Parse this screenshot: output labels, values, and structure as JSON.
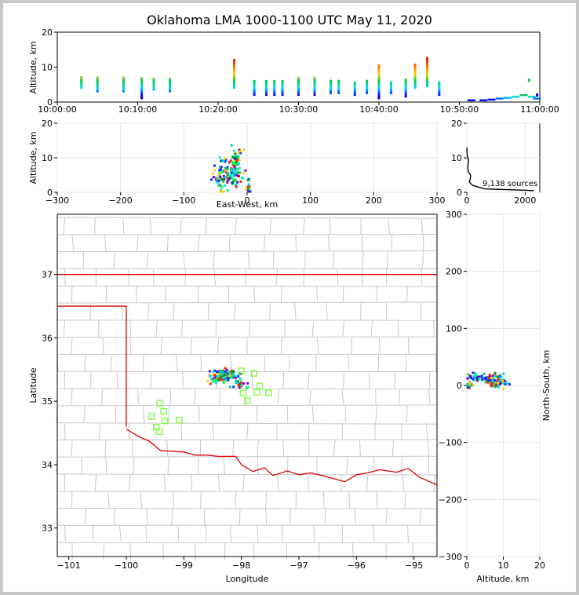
{
  "title": "Oklahoma LMA 1000-1100 UTC May 11, 2020",
  "chart_data": [
    {
      "id": "time-altitude",
      "type": "scatter",
      "xlabel": "",
      "ylabel": "Altitude, km",
      "xlim": [
        "10:00:00",
        "11:00:00"
      ],
      "ylim": [
        0,
        20
      ],
      "xticks": [
        "10:00:00",
        "10:10:00",
        "10:20:00",
        "10:30:00",
        "10:40:00",
        "10:50:00",
        "11:00:00"
      ],
      "yticks": [
        0,
        10,
        20
      ],
      "flashes": [
        {
          "t": "10:03:00",
          "zmin": 4,
          "zmax": 7.5
        },
        {
          "t": "10:05:00",
          "zmin": 3,
          "zmax": 7.5
        },
        {
          "t": "10:08:15",
          "zmin": 3,
          "zmax": 7.5
        },
        {
          "t": "10:10:30",
          "zmin": 1,
          "zmax": 7
        },
        {
          "t": "10:12:00",
          "zmin": 3.5,
          "zmax": 7
        },
        {
          "t": "10:14:00",
          "zmin": 3,
          "zmax": 7
        },
        {
          "t": "10:22:00",
          "zmin": 4,
          "zmax": 12.5
        },
        {
          "t": "10:24:30",
          "zmin": 2,
          "zmax": 6.5
        },
        {
          "t": "10:26:00",
          "zmin": 2,
          "zmax": 6.5
        },
        {
          "t": "10:27:00",
          "zmin": 2,
          "zmax": 6.5
        },
        {
          "t": "10:28:00",
          "zmin": 2,
          "zmax": 6.5
        },
        {
          "t": "10:30:00",
          "zmin": 2,
          "zmax": 7
        },
        {
          "t": "10:32:00",
          "zmin": 2,
          "zmax": 7
        },
        {
          "t": "10:34:00",
          "zmin": 2.5,
          "zmax": 6.5
        },
        {
          "t": "10:35:00",
          "zmin": 2.5,
          "zmax": 6.5
        },
        {
          "t": "10:37:00",
          "zmin": 2,
          "zmax": 6
        },
        {
          "t": "10:38:30",
          "zmin": 2.5,
          "zmax": 6.5
        },
        {
          "t": "10:40:00",
          "zmin": 1,
          "zmax": 10.5
        },
        {
          "t": "10:41:30",
          "zmin": 2.5,
          "zmax": 6
        },
        {
          "t": "10:43:20",
          "zmin": 1.5,
          "zmax": 6.5
        },
        {
          "t": "10:44:30",
          "zmin": 4,
          "zmax": 11
        },
        {
          "t": "10:46:00",
          "zmin": 4.5,
          "zmax": 13
        },
        {
          "t": "10:47:30",
          "zmin": 2,
          "zmax": 6
        }
      ],
      "low_band": [
        {
          "t": "10:51:30",
          "z": 0.5
        },
        {
          "t": "10:53:00",
          "z": 0.5
        },
        {
          "t": "10:54:00",
          "z": 0.7
        },
        {
          "t": "10:55:00",
          "z": 1
        },
        {
          "t": "10:56:00",
          "z": 1.2
        },
        {
          "t": "10:57:00",
          "z": 1.5
        },
        {
          "t": "10:58:00",
          "z": 2
        },
        {
          "t": "10:59:00",
          "z": 1.5
        },
        {
          "t": "10:59:40",
          "z": 1
        }
      ],
      "late_points": [
        {
          "t": "10:58:40",
          "z": 6.2
        },
        {
          "t": "10:59:40",
          "z": 2
        }
      ]
    },
    {
      "id": "ew-altitude",
      "type": "scatter",
      "xlabel": "East-West, km",
      "ylabel": "Altitude, km",
      "xlim": [
        -300,
        300
      ],
      "ylim": [
        0,
        20
      ],
      "xticks": [
        -300,
        -200,
        -100,
        0,
        100,
        200,
        300
      ],
      "yticks": [
        0,
        10,
        20
      ],
      "clusters": [
        {
          "x": -40,
          "z": 5,
          "sx": 8,
          "sz": 2.5,
          "n": 70
        },
        {
          "x": -17,
          "z": 8.5,
          "sx": 5,
          "sz": 2,
          "n": 50
        },
        {
          "x": -22,
          "z": 5,
          "sx": 6,
          "sz": 2,
          "n": 40
        },
        {
          "x": 3,
          "z": 1.5,
          "sx": 2,
          "sz": 1,
          "n": 15
        }
      ]
    },
    {
      "id": "altitude-histogram",
      "type": "line",
      "xlim": [
        0,
        2500
      ],
      "ylim": [
        0,
        20
      ],
      "xticks": [
        0,
        2000
      ],
      "yticks": [
        0,
        10,
        20
      ],
      "annotation": "9,138 sources",
      "profile": [
        {
          "count": 2300,
          "alt": 0.5
        },
        {
          "count": 600,
          "alt": 1
        },
        {
          "count": 200,
          "alt": 2
        },
        {
          "count": 90,
          "alt": 3
        },
        {
          "count": 120,
          "alt": 4
        },
        {
          "count": 130,
          "alt": 5
        },
        {
          "count": 50,
          "alt": 6
        },
        {
          "count": 35,
          "alt": 7
        },
        {
          "count": 40,
          "alt": 8
        },
        {
          "count": 60,
          "alt": 9
        },
        {
          "count": 40,
          "alt": 10
        },
        {
          "count": 10,
          "alt": 11
        },
        {
          "count": 0,
          "alt": 13
        }
      ]
    },
    {
      "id": "plan-view",
      "type": "scatter",
      "xlabel": "Longitude",
      "ylabel": "Latitude",
      "xlim": [
        -101.2,
        -94.6
      ],
      "ylim": [
        32.55,
        37.95
      ],
      "xticks": [
        -101,
        -100,
        -99,
        -98,
        -97,
        -96,
        -95
      ],
      "yticks": [
        33,
        34,
        35,
        36,
        37
      ],
      "state_border_color": "#e00000",
      "county_line_color": "#c8c8c8",
      "station_color": "#77ff33",
      "stations": [
        {
          "lon": -99.42,
          "lat": 34.97
        },
        {
          "lon": -99.35,
          "lat": 34.84
        },
        {
          "lon": -99.56,
          "lat": 34.76
        },
        {
          "lon": -99.33,
          "lat": 34.69
        },
        {
          "lon": -99.08,
          "lat": 34.7
        },
        {
          "lon": -99.48,
          "lat": 34.59
        },
        {
          "lon": -99.42,
          "lat": 34.52
        },
        {
          "lon": -98.0,
          "lat": 35.48
        },
        {
          "lon": -97.78,
          "lat": 35.44
        },
        {
          "lon": -97.68,
          "lat": 35.24
        },
        {
          "lon": -97.97,
          "lat": 35.13
        },
        {
          "lon": -97.73,
          "lat": 35.14
        },
        {
          "lon": -97.53,
          "lat": 35.13
        },
        {
          "lon": -97.9,
          "lat": 35.01
        }
      ],
      "source_clusters": [
        {
          "lon": -98.32,
          "lat": 35.4,
          "slon": 0.12,
          "slat": 0.05,
          "n": 120
        },
        {
          "lon": -98.05,
          "lat": 35.28,
          "slon": 0.06,
          "slat": 0.04,
          "n": 30
        }
      ]
    },
    {
      "id": "altitude-ns",
      "type": "scatter",
      "xlabel": "Altitude, km",
      "ylabel": "North-South, km",
      "xlim": [
        0,
        20
      ],
      "ylim": [
        -300,
        300
      ],
      "xticks": [
        0,
        10,
        20
      ],
      "yticks": [
        -300,
        -200,
        -100,
        0,
        100,
        200,
        300
      ],
      "clusters": [
        {
          "z": 5,
          "y": 12,
          "sz": 2.5,
          "sy": 4,
          "n": 80
        },
        {
          "z": 8.5,
          "y": 5,
          "sz": 1.5,
          "sy": 5,
          "n": 50
        },
        {
          "z": 0.8,
          "y": 0,
          "sz": 0.4,
          "sy": 2,
          "n": 15
        }
      ]
    }
  ]
}
